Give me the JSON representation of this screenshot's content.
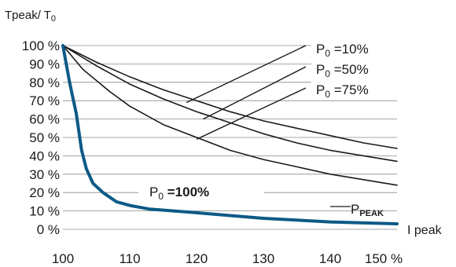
{
  "chart_data": {
    "type": "line",
    "ylabel_main": "Tpeak/ T",
    "ylabel_sub": "0",
    "xlabel": "I peak",
    "xlim": [
      100,
      150
    ],
    "ylim": [
      0,
      100
    ],
    "x_ticks": [
      "100",
      "110",
      "120",
      "130",
      "140",
      "150 %"
    ],
    "y_ticks": [
      "100 %",
      "90 %",
      "80 %",
      "70 %",
      "60 %",
      "50 %",
      "40 %",
      "30 %",
      "20 %",
      "10 %",
      "0 %"
    ],
    "y_tick_values": [
      100,
      90,
      80,
      70,
      60,
      50,
      40,
      30,
      20,
      10,
      0
    ],
    "grid": "horizontal",
    "series": [
      {
        "label_main": "P",
        "label_sub": "0",
        "label_rest": " =10%",
        "color": "#1a1a1a",
        "points": [
          [
            100,
            100
          ],
          [
            105,
            91
          ],
          [
            110,
            83
          ],
          [
            115,
            76
          ],
          [
            120,
            70
          ],
          [
            125,
            64
          ],
          [
            130,
            59
          ],
          [
            135,
            55
          ],
          [
            140,
            51
          ],
          [
            145,
            47
          ],
          [
            150,
            44
          ]
        ]
      },
      {
        "label_main": "P",
        "label_sub": "0",
        "label_rest": " =50%",
        "color": "#1a1a1a",
        "points": [
          [
            100,
            100
          ],
          [
            105,
            89
          ],
          [
            110,
            79
          ],
          [
            115,
            71
          ],
          [
            120,
            64
          ],
          [
            125,
            58
          ],
          [
            130,
            52
          ],
          [
            135,
            47
          ],
          [
            140,
            43
          ],
          [
            145,
            40
          ],
          [
            150,
            37
          ]
        ]
      },
      {
        "label_main": "P",
        "label_sub": "0",
        "label_rest": " =75%",
        "color": "#1a1a1a",
        "points": [
          [
            100,
            100
          ],
          [
            103,
            87
          ],
          [
            107,
            75
          ],
          [
            110,
            67
          ],
          [
            115,
            57
          ],
          [
            120,
            50
          ],
          [
            125,
            43
          ],
          [
            130,
            38
          ],
          [
            135,
            34
          ],
          [
            140,
            30
          ],
          [
            145,
            27
          ],
          [
            150,
            24
          ]
        ]
      },
      {
        "label_main": "P",
        "label_sub": "0",
        "label_rest": " =100%",
        "color": "#0d5a86",
        "points": [
          [
            100,
            100
          ],
          [
            101,
            80
          ],
          [
            102,
            63
          ],
          [
            102.8,
            43
          ],
          [
            103.5,
            33
          ],
          [
            104.5,
            25
          ],
          [
            106,
            20
          ],
          [
            108,
            15
          ],
          [
            110,
            13
          ],
          [
            113,
            11
          ],
          [
            120,
            9
          ],
          [
            130,
            6
          ],
          [
            140,
            4
          ],
          [
            150,
            3
          ]
        ]
      }
    ],
    "annotation": {
      "main": "P",
      "sub": "PEAK"
    }
  }
}
